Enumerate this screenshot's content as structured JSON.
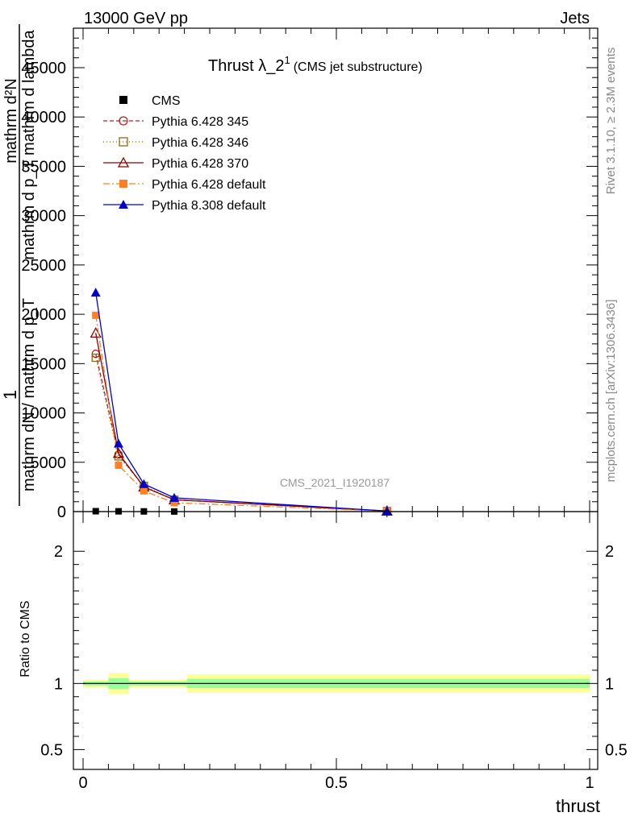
{
  "header": {
    "left": "13000 GeV pp",
    "right": "Jets"
  },
  "side_labels": {
    "rivet": "Rivet 3.1.10, ≥ 2.3M events",
    "mcplots": "mcplots.cern.ch [arXiv:1306.3436]"
  },
  "watermark": "CMS_2021_I1920187",
  "chart_data": [
    {
      "type": "line",
      "title_main": "Thrust λ_2",
      "title_sup": "1",
      "title_note": "(CMS jet substructure)",
      "ylabel_numerator": "mathrm d²N",
      "ylabel_numerator_sub": "mathrm d p_T mathrm d lambda",
      "ylabel_left": "1",
      "ylabel_denominator": "mathrm dN / mathrm d p_T",
      "xlim": [
        0,
        1
      ],
      "ylim": [
        0,
        49000
      ],
      "yticks": [
        0,
        5000,
        10000,
        15000,
        20000,
        25000,
        30000,
        35000,
        40000,
        45000
      ],
      "ytick_labels": [
        "0",
        "5000",
        "10000",
        "15000",
        "20000",
        "25000",
        "30000",
        "35000",
        "40000",
        "45000"
      ],
      "x": [
        0.025,
        0.07,
        0.12,
        0.18,
        0.6
      ],
      "series": [
        {
          "name": "CMS",
          "color": "#000000",
          "marker": "square-filled",
          "dash": "none",
          "values": [
            40,
            30,
            20,
            10,
            1
          ]
        },
        {
          "name": "Pythia 6.428 345",
          "color": "#b22222",
          "marker": "circle-open",
          "dash": "5,3",
          "values": [
            16000,
            5800,
            2500,
            1200,
            50
          ]
        },
        {
          "name": "Pythia 6.428 346",
          "color": "#8b6914",
          "marker": "square-open",
          "dash": "1,3",
          "values": [
            15600,
            5600,
            2600,
            1200,
            50
          ]
        },
        {
          "name": "Pythia 6.428 370",
          "color": "#8b0000",
          "marker": "triangle-open",
          "dash": "none",
          "values": [
            18100,
            5900,
            2500,
            1200,
            55
          ]
        },
        {
          "name": "Pythia 6.428 default",
          "color": "#ff7f24",
          "marker": "square-filled",
          "dash": "8,3,2,3",
          "values": [
            19900,
            4700,
            2100,
            900,
            45
          ]
        },
        {
          "name": "Pythia 8.308 default",
          "color": "#0000cd",
          "marker": "triangle-filled",
          "dash": "none",
          "values": [
            22200,
            6900,
            2800,
            1400,
            60
          ]
        }
      ]
    },
    {
      "type": "line",
      "ylabel": "Ratio to CMS",
      "xlabel": "thrust",
      "xlim": [
        0,
        1
      ],
      "ylim": [
        0.35,
        2.3
      ],
      "yticks": [
        0.5,
        1,
        2
      ],
      "ytick_labels": [
        "0.5",
        "1",
        "2"
      ],
      "xticks": [
        0,
        0.5,
        1
      ],
      "xtick_labels": [
        "0",
        "0.5",
        "1"
      ],
      "reference_value": 1,
      "bands": [
        {
          "x0": 0,
          "x1": 0.05,
          "yellow": [
            0.97,
            1.03
          ],
          "green": [
            0.985,
            1.015
          ]
        },
        {
          "x0": 0.05,
          "x1": 0.09,
          "yellow": [
            0.92,
            1.08
          ],
          "green": [
            0.96,
            1.04
          ]
        },
        {
          "x0": 0.09,
          "x1": 0.15,
          "yellow": [
            0.97,
            1.03
          ],
          "green": [
            0.985,
            1.015
          ]
        },
        {
          "x0": 0.15,
          "x1": 0.205,
          "yellow": [
            0.97,
            1.03
          ],
          "green": [
            0.985,
            1.015
          ]
        },
        {
          "x0": 0.205,
          "x1": 1.0,
          "yellow": [
            0.93,
            1.07
          ],
          "green": [
            0.965,
            1.035
          ]
        }
      ],
      "band_colors": {
        "yellow": "#ffff99",
        "green": "#99ff99"
      }
    }
  ]
}
